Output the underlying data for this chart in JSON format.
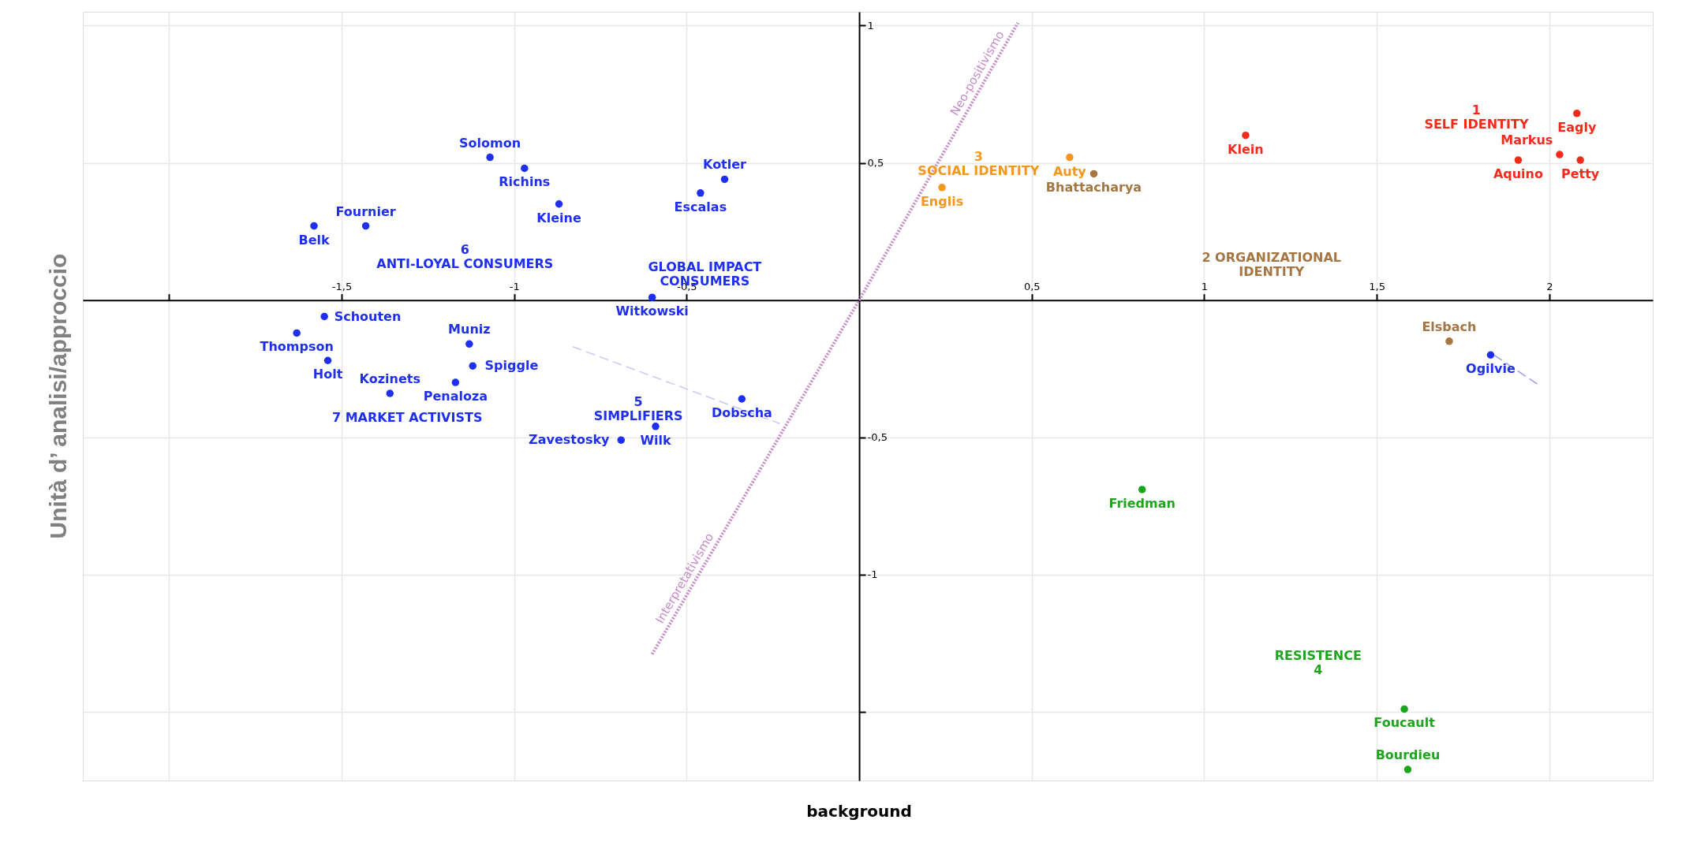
{
  "chart_data": {
    "type": "scatter",
    "xlabel": "background",
    "ylabel": "Unità d’ analisi/approccio",
    "xlim": [
      -2.25,
      2.3
    ],
    "ylim": [
      -1.75,
      1.05
    ],
    "xticks": [
      {
        "value": -2,
        "label": null
      },
      {
        "value": -1.5,
        "label": "-1,5"
      },
      -1,
      {
        "value": -0.5,
        "label": "-0,5"
      },
      {
        "value": 0.5,
        "label": "0,5"
      },
      1,
      {
        "value": 1.5,
        "label": "1,5"
      },
      2
    ],
    "yticks": [
      1,
      {
        "value": 0.5,
        "label": "0,5"
      },
      {
        "value": -0.5,
        "label": "-0,5"
      },
      -1,
      {
        "value": -1.5,
        "label": null
      }
    ],
    "grid": true,
    "marker": "circle",
    "series": [
      {
        "name": "6\nANTI-LOYAL CONSUMERS",
        "color": "#1f2ff0",
        "x": [
          -1.07,
          -0.97,
          -0.87,
          -1.58,
          -1.43
        ],
        "values": [
          0.52,
          0.48,
          0.35,
          0.27,
          0.27
        ]
      },
      {
        "name": "7 MARKET ACTIVISTS",
        "color": "#1f2ff0",
        "x": [
          -1.55,
          -1.63,
          -1.13,
          -1.12,
          -1.54,
          -1.17,
          -1.36
        ],
        "values": [
          -0.06,
          -0.12,
          -0.16,
          -0.24,
          -0.22,
          -0.3,
          -0.34
        ]
      },
      {
        "name": "GLOBAL IMPACT\nCONSUMERS",
        "color": "#1f2ff0",
        "x": [
          -0.39,
          -0.46,
          -0.6,
          -0.34
        ],
        "values": [
          0.44,
          0.39,
          0.01,
          -0.36
        ]
      },
      {
        "name": "5\nSIMPLIFIERS",
        "color": "#1f2ff0",
        "x": [
          -0.59,
          -0.69
        ],
        "values": [
          -0.46,
          -0.51
        ]
      },
      {
        "color": "#1f2ff0",
        "x": [
          1.83
        ],
        "values": [
          -0.2
        ]
      },
      {
        "name": "1\nSELF IDENTITY",
        "color": "#f52a1a",
        "x": [
          1.12,
          2.08,
          2.03,
          1.91,
          2.09
        ],
        "values": [
          0.6,
          0.68,
          0.53,
          0.51,
          0.51
        ]
      },
      {
        "name": "3\nSOCIAL IDENTITY",
        "color": "#f5961e",
        "x": [
          0.24,
          0.61
        ],
        "values": [
          0.41,
          0.52
        ]
      },
      {
        "name": "2 ORGANIZATIONAL\nIDENTITY",
        "color": "#a57642",
        "x": [
          0.68,
          1.71
        ],
        "values": [
          0.46,
          -0.15
        ]
      },
      {
        "name": "RESISTENCE\n4",
        "color": "#1ea51e",
        "x": [
          0.82,
          1.58,
          1.59
        ],
        "values": [
          -0.69,
          -1.49,
          -1.71
        ]
      },
      {
        "type": "line",
        "marker": "none",
        "color": "#c78ac7",
        "line_style": "dotted",
        "x": [
          -0.6,
          0,
          0.46
        ],
        "values": [
          -1.29,
          0,
          1.01
        ]
      },
      {
        "type": "line",
        "marker": "none",
        "color": "#c8c8f5",
        "line_style": "dashed",
        "x": [
          -0.83,
          -0.23
        ],
        "values": [
          -0.17,
          -0.45
        ]
      },
      {
        "type": "line",
        "marker": "none",
        "color": "#9a9af5",
        "line_style": "dashed",
        "x": [
          1.84,
          1.97
        ],
        "values": [
          -0.2,
          -0.31
        ]
      }
    ],
    "annotations": [
      {
        "text": "Solomon",
        "x": -1.07,
        "y": 0.52
      },
      {
        "text": "Richins",
        "x": -0.97,
        "y": 0.48
      },
      {
        "text": "Kleine",
        "x": -0.87,
        "y": 0.35
      },
      {
        "text": "Belk",
        "x": -1.58,
        "y": 0.27
      },
      {
        "text": "Fournier",
        "x": -1.43,
        "y": 0.27
      },
      {
        "text": "Schouten",
        "x": -1.55,
        "y": -0.06
      },
      {
        "text": "Thompson",
        "x": -1.63,
        "y": -0.12
      },
      {
        "text": "Muniz",
        "x": -1.13,
        "y": -0.16
      },
      {
        "text": "Spiggle",
        "x": -1.12,
        "y": -0.24
      },
      {
        "text": "Holt",
        "x": -1.54,
        "y": -0.22
      },
      {
        "text": "Penaloza",
        "x": -1.17,
        "y": -0.3
      },
      {
        "text": "Kozinets",
        "x": -1.36,
        "y": -0.34
      },
      {
        "text": "Kotler",
        "x": -0.39,
        "y": 0.44
      },
      {
        "text": "Escalas",
        "x": -0.46,
        "y": 0.39
      },
      {
        "text": "Witkowski",
        "x": -0.6,
        "y": 0.01
      },
      {
        "text": "Dobscha",
        "x": -0.34,
        "y": -0.36
      },
      {
        "text": "Wilk",
        "x": -0.59,
        "y": -0.46
      },
      {
        "text": "Zavestosky",
        "x": -0.69,
        "y": -0.51
      },
      {
        "text": "Ogilvie",
        "x": 1.83,
        "y": -0.2
      },
      {
        "text": "Klein",
        "x": 1.12,
        "y": 0.6
      },
      {
        "text": "Eagly",
        "x": 2.08,
        "y": 0.68
      },
      {
        "text": "Markus",
        "x": 2.03,
        "y": 0.53
      },
      {
        "text": "Aquino",
        "x": 1.91,
        "y": 0.51
      },
      {
        "text": "Petty",
        "x": 2.09,
        "y": 0.51
      },
      {
        "text": "Englis",
        "x": 0.24,
        "y": 0.41
      },
      {
        "text": "Auty",
        "x": 0.61,
        "y": 0.52
      },
      {
        "text": "Bhattacharya",
        "x": 0.68,
        "y": 0.46
      },
      {
        "text": "Elsbach",
        "x": 1.71,
        "y": -0.15
      },
      {
        "text": "Friedman",
        "x": 0.82,
        "y": -0.69
      },
      {
        "text": "Foucault",
        "x": 1.58,
        "y": -1.49
      },
      {
        "text": "Bourdieu",
        "x": 1.59,
        "y": -1.71
      },
      {
        "text": "Interpretativismo",
        "x": -0.48,
        "y": -1.032
      },
      {
        "text": "Neo-positivismo",
        "x": 0.368,
        "y": 0.808
      }
    ]
  }
}
